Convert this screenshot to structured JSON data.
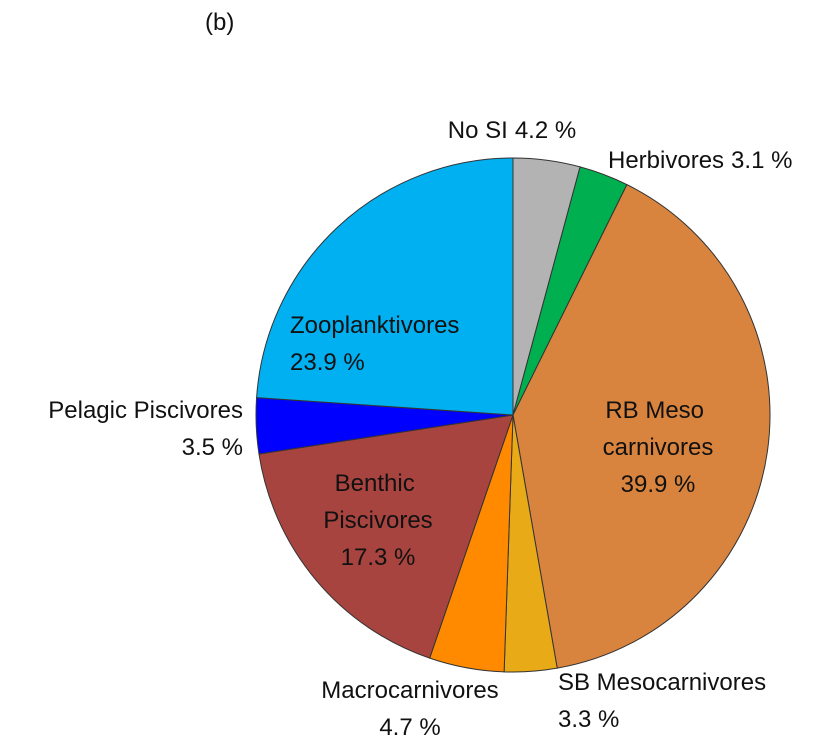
{
  "chart_data": {
    "type": "pie",
    "title": "(b)",
    "categories": [
      "No SI",
      "Herbivores",
      "RB Meso carnivores",
      "SB Mesocarnivores",
      "Macrocarnivores",
      "Benthic Piscivores",
      "Pelagic Piscivores",
      "Zooplanktivores"
    ],
    "values": [
      4.2,
      3.1,
      39.9,
      3.3,
      4.7,
      17.3,
      3.5,
      23.9
    ],
    "value_labels": [
      "4.2 %",
      "3.1 %",
      "39.9 %",
      "3.3 %",
      "4.7 %",
      "17.3 %",
      "3.5 %",
      "23.9 %"
    ],
    "colors": [
      "#b3b3b3",
      "#00b050",
      "#d9843e",
      "#e8aa17",
      "#ff8a00",
      "#a8443f",
      "#0000ff",
      "#00b0f0"
    ]
  }
}
